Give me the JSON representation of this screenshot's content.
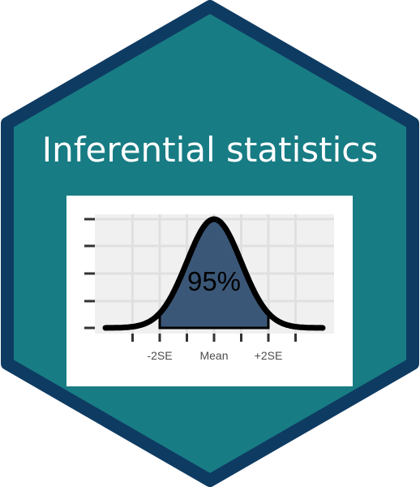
{
  "sticker": {
    "title": "Inferential statistics",
    "colors": {
      "hex_fill": "#187c84",
      "hex_border": "#0e3b62",
      "panel_bg": "#ffffff",
      "plot_bg": "#f0f0f0",
      "grid": "#e0e0e0",
      "shaded_area": "#3b5778",
      "curve": "#000000"
    }
  },
  "chart_data": {
    "type": "area",
    "series": [
      {
        "values": [
          0,
          0,
          0,
          0.05,
          0.24,
          0.4,
          0.24,
          0.05,
          0,
          0,
          0
        ]
      }
    ],
    "x": [
      -5,
      -4,
      -3,
      -2,
      -1,
      0,
      1,
      2,
      3,
      4,
      5
    ],
    "x_ticks": [
      {
        "value": -2,
        "label": "-2SE"
      },
      {
        "value": 0,
        "label": "Mean"
      },
      {
        "value": 2,
        "label": "+2SE"
      }
    ],
    "shaded_interval": [
      -2,
      2
    ],
    "annotation": "95%",
    "xlim": [
      -4,
      4
    ],
    "ylim": [
      0,
      0.4
    ],
    "grid": true,
    "legend": "none"
  }
}
